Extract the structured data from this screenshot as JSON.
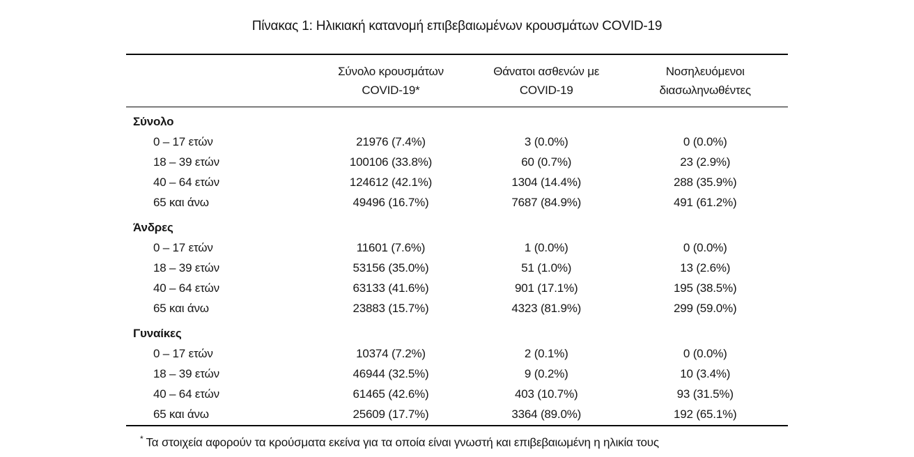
{
  "title": "Πίνακας 1: Ηλικιακή κατανομή επιβεβαιωμένων κρουσμάτων COVID-19",
  "table": {
    "headers": [
      {
        "line1": "Σύνολο κρουσμάτων",
        "line2": "COVID-19*"
      },
      {
        "line1": "Θάνατοι ασθενών με",
        "line2": "COVID-19"
      },
      {
        "line1": "Νοσηλευόμενοι",
        "line2": "διασωληνωθέντες"
      }
    ],
    "sections": [
      {
        "label": "Σύνολο",
        "rows": [
          {
            "age": "0 – 17 ετών",
            "cases": "21976 (7.4%)",
            "deaths": "3 (0.0%)",
            "intubated": "0 (0.0%)"
          },
          {
            "age": "18 – 39 ετών",
            "cases": "100106 (33.8%)",
            "deaths": "60 (0.7%)",
            "intubated": "23 (2.9%)"
          },
          {
            "age": "40 – 64 ετών",
            "cases": "124612 (42.1%)",
            "deaths": "1304 (14.4%)",
            "intubated": "288 (35.9%)"
          },
          {
            "age": "65 και άνω",
            "cases": "49496 (16.7%)",
            "deaths": "7687 (84.9%)",
            "intubated": "491 (61.2%)"
          }
        ]
      },
      {
        "label": "Άνδρες",
        "rows": [
          {
            "age": "0 – 17 ετών",
            "cases": "11601 (7.6%)",
            "deaths": "1 (0.0%)",
            "intubated": "0 (0.0%)"
          },
          {
            "age": "18 – 39 ετών",
            "cases": "53156 (35.0%)",
            "deaths": "51 (1.0%)",
            "intubated": "13 (2.6%)"
          },
          {
            "age": "40 – 64 ετών",
            "cases": "63133 (41.6%)",
            "deaths": "901 (17.1%)",
            "intubated": "195 (38.5%)"
          },
          {
            "age": "65 και άνω",
            "cases": "23883 (15.7%)",
            "deaths": "4323 (81.9%)",
            "intubated": "299 (59.0%)"
          }
        ]
      },
      {
        "label": "Γυναίκες",
        "rows": [
          {
            "age": "0 – 17 ετών",
            "cases": "10374 (7.2%)",
            "deaths": "2 (0.1%)",
            "intubated": "0 (0.0%)"
          },
          {
            "age": "18 – 39 ετών",
            "cases": "46944 (32.5%)",
            "deaths": "9 (0.2%)",
            "intubated": "10 (3.4%)"
          },
          {
            "age": "40 – 64 ετών",
            "cases": "61465 (42.6%)",
            "deaths": "403 (10.7%)",
            "intubated": "93 (31.5%)"
          },
          {
            "age": "65 και άνω",
            "cases": "25609 (17.7%)",
            "deaths": "3364 (89.0%)",
            "intubated": "192 (65.1%)"
          }
        ]
      }
    ]
  },
  "footnote": {
    "marker": "*",
    "text": "Τα στοιχεία αφορούν τα κρούσματα εκείνα για τα οποία είναι γνωστή και επιβεβαιωμένη η ηλικία τους"
  }
}
